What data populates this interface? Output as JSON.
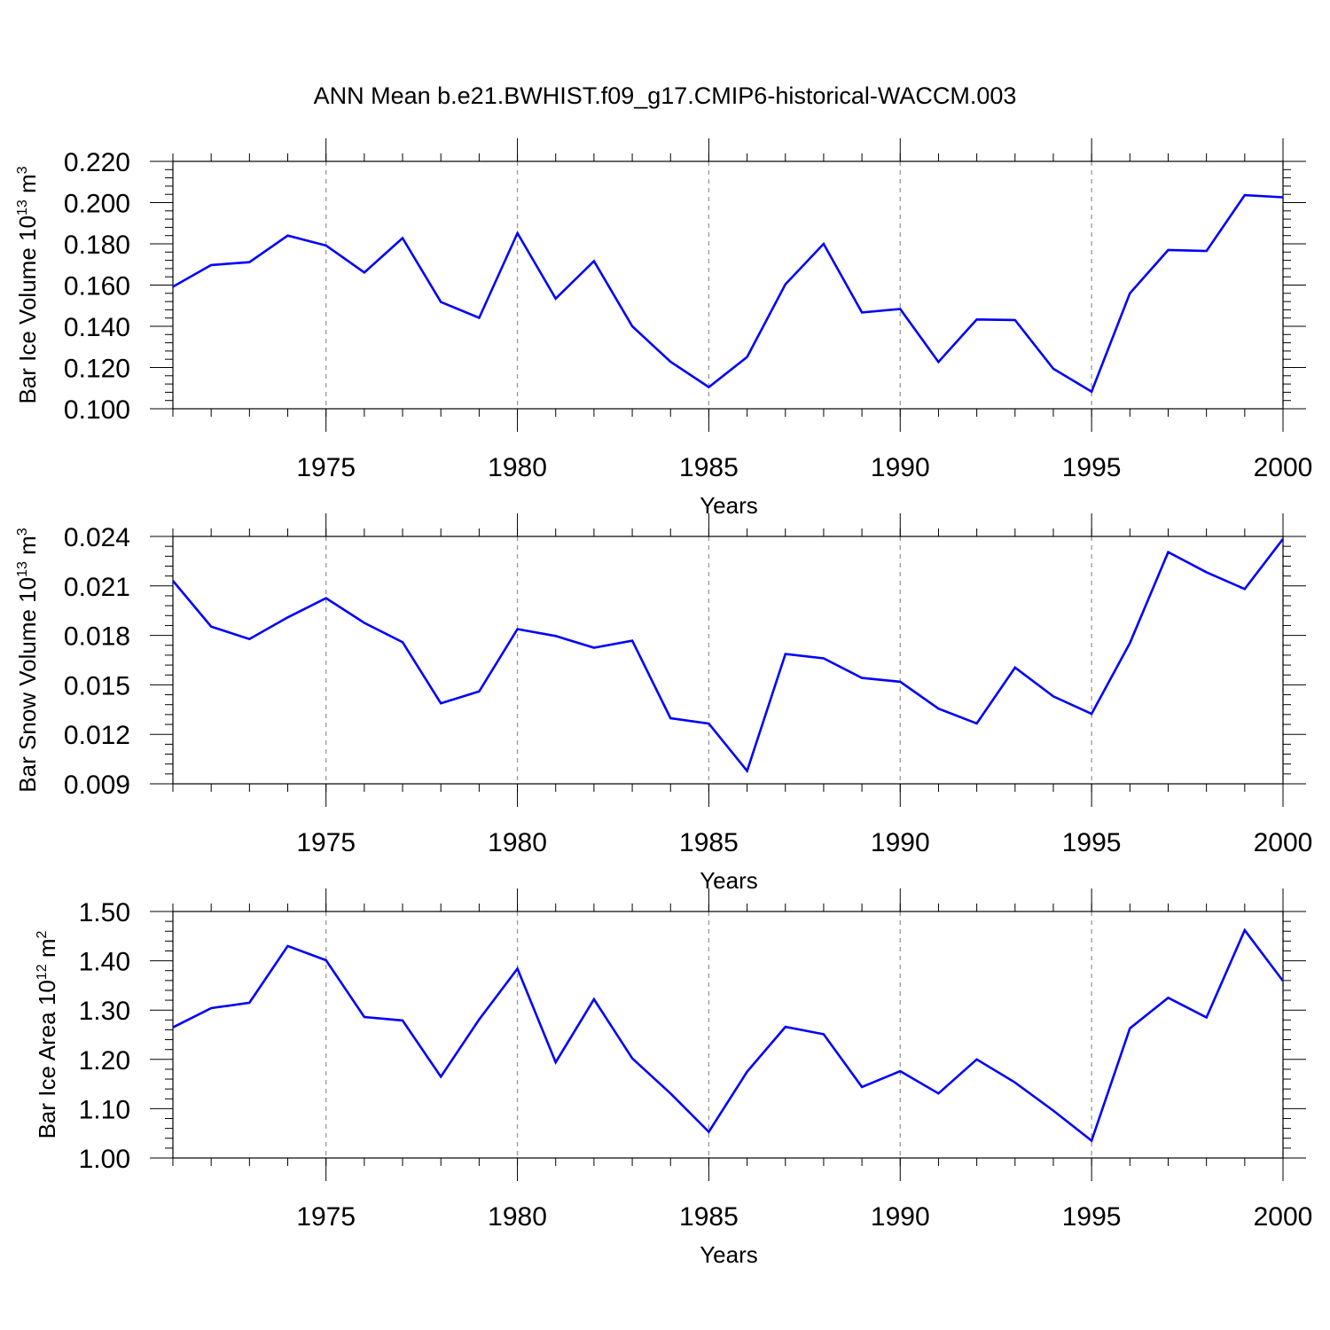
{
  "title": "ANN Mean b.e21.BWHIST.f09_g17.CMIP6-historical-WACCM.003",
  "line_color": "#0000ff",
  "chart_data": [
    {
      "type": "line",
      "ylabel": "Bar Ice Volume 10",
      "ylabel_exp": "13",
      "ylabel_unit": " m",
      "ylabel_unit_exp": "3",
      "xlabel": "Years",
      "xlim": [
        1971,
        2000
      ],
      "ylim": [
        0.1,
        0.22
      ],
      "yticks": [
        "0.100",
        "0.120",
        "0.140",
        "0.160",
        "0.180",
        "0.200",
        "0.220"
      ],
      "ytick_values": [
        0.1,
        0.12,
        0.14,
        0.16,
        0.18,
        0.2,
        0.22
      ],
      "xticks": [
        "1975",
        "1980",
        "1985",
        "1990",
        "1995",
        "2000"
      ],
      "xtick_values": [
        1975,
        1980,
        1985,
        1990,
        1995,
        2000
      ],
      "x": [
        1971,
        1972,
        1973,
        1974,
        1975,
        1976,
        1977,
        1978,
        1979,
        1980,
        1981,
        1982,
        1983,
        1984,
        1985,
        1986,
        1987,
        1988,
        1989,
        1990,
        1991,
        1992,
        1993,
        1994,
        1995,
        1996,
        1997,
        1998,
        1999,
        2000
      ],
      "values": [
        0.1592,
        0.1697,
        0.1711,
        0.184,
        0.1792,
        0.1661,
        0.1828,
        0.1518,
        0.1441,
        0.1852,
        0.1534,
        0.1716,
        0.14,
        0.1228,
        0.1105,
        0.1251,
        0.1604,
        0.18,
        0.1467,
        0.1484,
        0.1227,
        0.1433,
        0.143,
        0.1194,
        0.1083,
        0.156,
        0.177,
        0.1765,
        0.2036,
        0.2026
      ]
    },
    {
      "type": "line",
      "ylabel": "Bar Snow Volume 10",
      "ylabel_exp": "13",
      "ylabel_unit": " m",
      "ylabel_unit_exp": "3",
      "xlabel": "Years",
      "xlim": [
        1971,
        2000
      ],
      "ylim": [
        0.009,
        0.024
      ],
      "yticks": [
        "0.009",
        "0.012",
        "0.015",
        "0.018",
        "0.021",
        "0.024"
      ],
      "ytick_values": [
        0.009,
        0.012,
        0.015,
        0.018,
        0.021,
        0.024
      ],
      "xticks": [
        "1975",
        "1980",
        "1985",
        "1990",
        "1995",
        "2000"
      ],
      "xtick_values": [
        1975,
        1980,
        1985,
        1990,
        1995,
        2000
      ],
      "x": [
        1971,
        1972,
        1973,
        1974,
        1975,
        1976,
        1977,
        1978,
        1979,
        1980,
        1981,
        1982,
        1983,
        1984,
        1985,
        1986,
        1987,
        1988,
        1989,
        1990,
        1991,
        1992,
        1993,
        1994,
        1995,
        1996,
        1997,
        1998,
        1999,
        2000
      ],
      "values": [
        0.02131,
        0.01853,
        0.01778,
        0.01909,
        0.02026,
        0.01876,
        0.01759,
        0.01388,
        0.0146,
        0.01838,
        0.01796,
        0.01725,
        0.01768,
        0.01298,
        0.01265,
        0.00978,
        0.01687,
        0.01661,
        0.01542,
        0.01519,
        0.01356,
        0.01266,
        0.01605,
        0.0143,
        0.01324,
        0.01753,
        0.02305,
        0.02183,
        0.02081,
        0.02385
      ]
    },
    {
      "type": "line",
      "ylabel": "Bar Ice Area 10",
      "ylabel_exp": "12",
      "ylabel_unit": " m",
      "ylabel_unit_exp": "2",
      "xlabel": "Years",
      "xlim": [
        1971,
        2000
      ],
      "ylim": [
        1.0,
        1.5
      ],
      "yticks": [
        "1.00",
        "1.10",
        "1.20",
        "1.30",
        "1.40",
        "1.50"
      ],
      "ytick_values": [
        1.0,
        1.1,
        1.2,
        1.3,
        1.4,
        1.5
      ],
      "xticks": [
        "1975",
        "1980",
        "1985",
        "1990",
        "1995",
        "2000"
      ],
      "xtick_values": [
        1975,
        1980,
        1985,
        1990,
        1995,
        2000
      ],
      "x": [
        1971,
        1972,
        1973,
        1974,
        1975,
        1976,
        1977,
        1978,
        1979,
        1980,
        1981,
        1982,
        1983,
        1984,
        1985,
        1986,
        1987,
        1988,
        1989,
        1990,
        1991,
        1992,
        1993,
        1994,
        1995,
        1996,
        1997,
        1998,
        1999,
        2000
      ],
      "values": [
        1.265,
        1.304,
        1.315,
        1.43,
        1.401,
        1.286,
        1.279,
        1.165,
        1.281,
        1.384,
        1.194,
        1.322,
        1.202,
        1.131,
        1.053,
        1.175,
        1.266,
        1.251,
        1.144,
        1.176,
        1.131,
        1.2,
        1.153,
        1.096,
        1.035,
        1.263,
        1.325,
        1.285,
        1.462,
        1.359
      ]
    }
  ]
}
